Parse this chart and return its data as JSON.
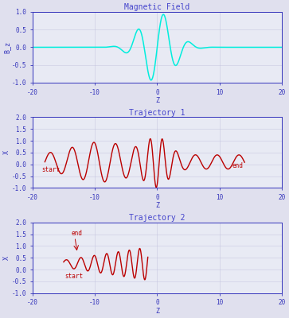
{
  "title1": "Magnetic Field",
  "title2": "Trajectory 1",
  "title3": "Trajectory 2",
  "xlabel": "Z",
  "ylabel1": "B_z",
  "ylabel2": "X",
  "ylabel3": "X",
  "xlim": [
    -20,
    20
  ],
  "ylim1": [
    -1.0,
    1.0
  ],
  "ylim2": [
    -1.0,
    2.0
  ],
  "ylim3": [
    -1.0,
    2.0
  ],
  "bg_color": "#e0e0ee",
  "plot_bg": "#e8eaf4",
  "cyan_color": "#00eedd",
  "red_color": "#bb0000",
  "axis_color": "#3333bb",
  "title_color": "#4444cc",
  "grid_color": "#c0c0dd",
  "figsize": [
    3.63,
    4.0
  ],
  "dpi": 100
}
